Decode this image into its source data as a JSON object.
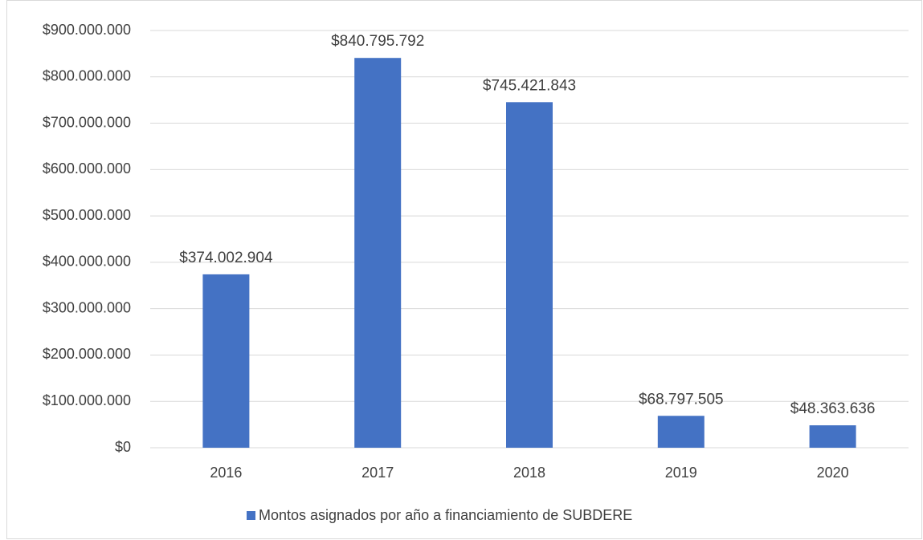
{
  "chart_data": {
    "type": "bar",
    "categories": [
      "2016",
      "2017",
      "2018",
      "2019",
      "2020"
    ],
    "series": [
      {
        "name": "Montos asignados por año a financiamiento de SUBDERE",
        "color": "#4472c4",
        "values": [
          374002904,
          840795792,
          745421843,
          68797505,
          48363636
        ],
        "value_labels": [
          "$374.002.904",
          "$840.795.792",
          "$745.421.843",
          "$68.797.505",
          "$48.363.636"
        ]
      }
    ],
    "ylim": [
      0,
      900000000
    ],
    "yticks": [
      {
        "value": 0,
        "label": "$0"
      },
      {
        "value": 100000000,
        "label": "$100.000.000"
      },
      {
        "value": 200000000,
        "label": "$200.000.000"
      },
      {
        "value": 300000000,
        "label": "$300.000.000"
      },
      {
        "value": 400000000,
        "label": "$400.000.000"
      },
      {
        "value": 500000000,
        "label": "$500.000.000"
      },
      {
        "value": 600000000,
        "label": "$600.000.000"
      },
      {
        "value": 700000000,
        "label": "$700.000.000"
      },
      {
        "value": 800000000,
        "label": "$800.000.000"
      },
      {
        "value": 900000000,
        "label": "$900.000.000"
      }
    ],
    "grid": true,
    "legend": "bottom"
  }
}
